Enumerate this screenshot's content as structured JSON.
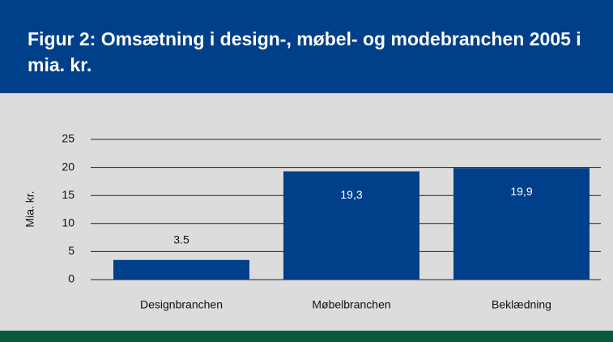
{
  "chart_data": {
    "type": "bar",
    "title": "Figur 2: Omsætning i design-, møbel- og modebranchen 2005 i mia. kr.",
    "ylabel": "Mia. kr.",
    "categories": [
      "Designbranchen",
      "Møbelbranchen",
      "Beklædning"
    ],
    "values": [
      3.5,
      19.3,
      19.9
    ],
    "value_labels": [
      "3.5",
      "19,3",
      "19,9"
    ],
    "color": "#003f8a",
    "ylim": [
      0,
      25
    ],
    "yticks": [
      0,
      5,
      10,
      15,
      20,
      25
    ],
    "grid": true
  }
}
